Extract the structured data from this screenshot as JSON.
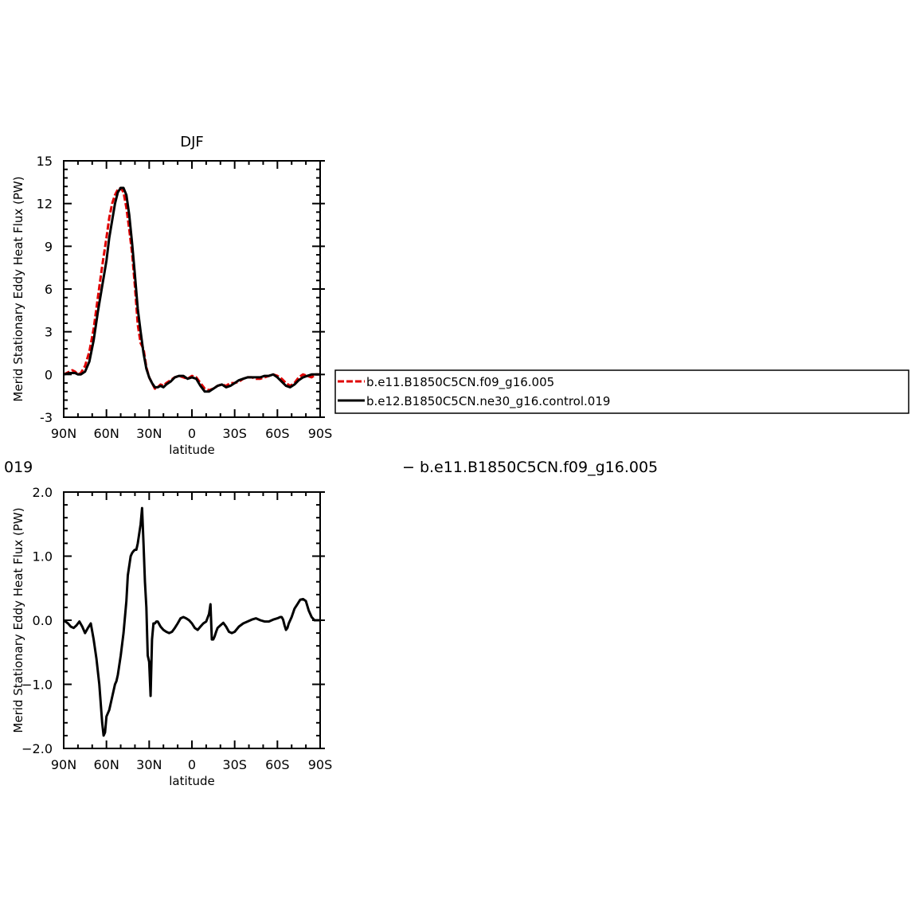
{
  "chart_data": [
    {
      "type": "line",
      "title": "DJF",
      "xlabel": "latitude",
      "ylabel": "Merid Stationary Eddy Heat Flux (PW)",
      "xlim": [
        90,
        -90
      ],
      "ylim": [
        -3,
        15
      ],
      "x_ticks": [
        90,
        60,
        30,
        0,
        -30,
        -60,
        -90
      ],
      "x_tick_labels": [
        "90N",
        "60N",
        "30N",
        "0",
        "30S",
        "60S",
        "90S"
      ],
      "y_ticks": [
        -3,
        0,
        3,
        6,
        9,
        12,
        15
      ],
      "y_tick_labels": [
        "-3",
        "0",
        "3",
        "6",
        "9",
        "12",
        "15"
      ],
      "grid": false,
      "legend": "right",
      "series": [
        {
          "name": "b.e11.B1850C5CN.f09_g16.005",
          "color": "#e00000",
          "dash": "dashed",
          "x": [
            90,
            86,
            84,
            82,
            80,
            78,
            75,
            72,
            69,
            66,
            63,
            60,
            58,
            56,
            54,
            52,
            50,
            48,
            46,
            44,
            42,
            40,
            38,
            36,
            34,
            32,
            30,
            28,
            26,
            24,
            22,
            20,
            18,
            15,
            12,
            9,
            6,
            3,
            0,
            -3,
            -6,
            -9,
            -12,
            -15,
            -18,
            -21,
            -24,
            -27,
            -30,
            -33,
            -36,
            -39,
            -42,
            -45,
            -48,
            -51,
            -54,
            -57,
            -60,
            -63,
            -66,
            -69,
            -72,
            -75,
            -78,
            -81,
            -84,
            -87,
            -90
          ],
          "y": [
            0.0,
            0.2,
            0.3,
            0.2,
            0.0,
            0.1,
            0.6,
            1.6,
            3.2,
            5.4,
            7.6,
            9.6,
            11.0,
            12.0,
            12.6,
            13.0,
            13.1,
            12.8,
            11.7,
            10.2,
            8.5,
            6.2,
            3.5,
            2.2,
            1.8,
            0.5,
            -0.2,
            -0.6,
            -1.0,
            -0.9,
            -0.7,
            -0.8,
            -0.6,
            -0.4,
            -0.2,
            -0.1,
            -0.2,
            -0.3,
            -0.1,
            -0.2,
            -0.6,
            -1.0,
            -1.1,
            -1.0,
            -0.8,
            -0.7,
            -0.8,
            -0.6,
            -0.6,
            -0.5,
            -0.3,
            -0.2,
            -0.2,
            -0.3,
            -0.3,
            -0.2,
            -0.1,
            0.0,
            -0.1,
            -0.3,
            -0.6,
            -0.8,
            -0.6,
            -0.2,
            0.0,
            -0.1,
            -0.2,
            0.0,
            0.0
          ]
        },
        {
          "name": "b.e12.B1850C5CN.ne30_g16.control.019",
          "color": "#000000",
          "dash": "solid",
          "x": [
            90,
            86,
            84,
            82,
            80,
            78,
            75,
            72,
            69,
            66,
            63,
            60,
            58,
            56,
            54,
            52,
            50,
            48,
            46,
            44,
            42,
            40,
            38,
            36,
            34,
            32,
            30,
            28,
            26,
            24,
            22,
            20,
            18,
            15,
            12,
            9,
            6,
            3,
            0,
            -3,
            -6,
            -9,
            -12,
            -15,
            -18,
            -21,
            -24,
            -27,
            -30,
            -33,
            -36,
            -39,
            -42,
            -45,
            -48,
            -51,
            -54,
            -57,
            -60,
            -63,
            -66,
            -69,
            -72,
            -75,
            -78,
            -81,
            -84,
            -87,
            -90
          ],
          "y": [
            0.0,
            0.1,
            0.1,
            0.1,
            0.0,
            0.0,
            0.2,
            0.9,
            2.4,
            4.4,
            6.2,
            8.0,
            9.6,
            10.8,
            12.0,
            12.8,
            13.1,
            13.1,
            12.6,
            11.2,
            9.2,
            7.0,
            4.6,
            3.0,
            1.5,
            0.4,
            -0.2,
            -0.6,
            -0.9,
            -0.9,
            -0.8,
            -0.9,
            -0.7,
            -0.5,
            -0.2,
            -0.1,
            -0.1,
            -0.3,
            -0.2,
            -0.3,
            -0.8,
            -1.2,
            -1.2,
            -1.0,
            -0.8,
            -0.7,
            -0.9,
            -0.8,
            -0.6,
            -0.4,
            -0.3,
            -0.2,
            -0.2,
            -0.2,
            -0.2,
            -0.1,
            -0.1,
            0.0,
            -0.2,
            -0.5,
            -0.8,
            -0.9,
            -0.7,
            -0.4,
            -0.2,
            -0.1,
            0.0,
            0.0,
            0.0
          ]
        }
      ]
    },
    {
      "type": "line",
      "title": "",
      "xlabel": "latitude",
      "ylabel": "Merid Stationary Eddy Heat Flux (PW)",
      "xlim": [
        90,
        -90
      ],
      "ylim": [
        -2,
        2
      ],
      "x_ticks": [
        90,
        60,
        30,
        0,
        -30,
        -60,
        -90
      ],
      "x_tick_labels": [
        "90N",
        "60N",
        "30N",
        "0",
        "30S",
        "60S",
        "90S"
      ],
      "y_ticks": [
        -2,
        -1,
        0,
        1,
        2
      ],
      "y_tick_labels": [
        "−2.0",
        "−1.0",
        "0.0",
        "1.0",
        "2.0"
      ],
      "grid": false,
      "series": [
        {
          "color": "#000000",
          "dash": "solid",
          "x": [
            90,
            87,
            85,
            83,
            81,
            79,
            77,
            75,
            73,
            71,
            69,
            67,
            65,
            64,
            63,
            62,
            61,
            60,
            58,
            56,
            54,
            53,
            52,
            50,
            48,
            46,
            45,
            43,
            42,
            41,
            40,
            39,
            38,
            37,
            36,
            35,
            34,
            33,
            32,
            31,
            30,
            29,
            28,
            27,
            26,
            25,
            24,
            22,
            20,
            18,
            16,
            14,
            12,
            10,
            8,
            6,
            4,
            2,
            0,
            -2,
            -4,
            -6,
            -8,
            -10,
            -12,
            -13,
            -14,
            -15,
            -16,
            -17,
            -18,
            -20,
            -22,
            -24,
            -26,
            -28,
            -30,
            -33,
            -36,
            -39,
            -42,
            -45,
            -48,
            -51,
            -54,
            -57,
            -60,
            -62,
            -63,
            -64,
            -65,
            -66,
            -67,
            -68,
            -70,
            -72,
            -74,
            -76,
            -78,
            -80,
            -82,
            -84,
            -86,
            -88,
            -90
          ],
          "y": [
            0.0,
            -0.05,
            -0.1,
            -0.12,
            -0.08,
            -0.02,
            -0.1,
            -0.2,
            -0.12,
            -0.05,
            -0.3,
            -0.6,
            -1.0,
            -1.3,
            -1.6,
            -1.8,
            -1.75,
            -1.5,
            -1.4,
            -1.2,
            -1.0,
            -0.95,
            -0.85,
            -0.55,
            -0.2,
            0.3,
            0.7,
            1.0,
            1.05,
            1.08,
            1.1,
            1.1,
            1.2,
            1.35,
            1.5,
            1.75,
            1.2,
            0.6,
            0.2,
            -0.55,
            -0.65,
            -1.18,
            -0.3,
            -0.05,
            -0.05,
            -0.02,
            -0.02,
            -0.1,
            -0.15,
            -0.18,
            -0.2,
            -0.18,
            -0.12,
            -0.05,
            0.03,
            0.05,
            0.03,
            0.0,
            -0.05,
            -0.12,
            -0.15,
            -0.1,
            -0.05,
            -0.02,
            0.1,
            0.25,
            -0.3,
            -0.3,
            -0.25,
            -0.18,
            -0.12,
            -0.08,
            -0.04,
            -0.1,
            -0.18,
            -0.2,
            -0.18,
            -0.1,
            -0.05,
            -0.02,
            0.01,
            0.03,
            0.0,
            -0.02,
            -0.02,
            0.01,
            0.03,
            0.05,
            0.05,
            0.01,
            -0.08,
            -0.15,
            -0.12,
            -0.05,
            0.05,
            0.18,
            0.25,
            0.32,
            0.33,
            0.3,
            0.15,
            0.05,
            0.0,
            0.0,
            0.0
          ]
        }
      ]
    }
  ],
  "overlay": {
    "diff_label": "019",
    "diff_legend": "− b.e11.B1850C5CN.f09_g16.005"
  }
}
